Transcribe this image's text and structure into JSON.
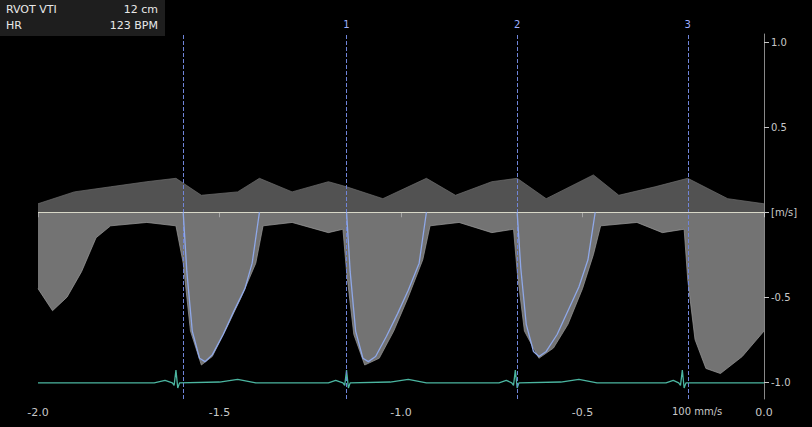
{
  "chart_data": {
    "type": "line",
    "annotations": {
      "info": [
        [
          "RVOT VTI",
          "12 cm"
        ],
        [
          "HR",
          "123 BPM"
        ]
      ],
      "sweep": "100 mm/s"
    },
    "xlim": [
      -2.0,
      0.0
    ],
    "xticks": [
      {
        "value": -2.0,
        "label": "-2.0"
      },
      -1.5,
      {
        "value": -1.0,
        "label": "-1.0"
      },
      -0.5,
      {
        "value": 0.0,
        "label": "0.0"
      }
    ],
    "ylim": [
      -1.1,
      1.05
    ],
    "yticks": [
      {
        "value": -1.0,
        "label": "-1.0"
      },
      -0.5,
      {
        "value": 0,
        "label": "[m/s]"
      },
      0.5,
      {
        "value": 1.0,
        "label": "1.0"
      }
    ],
    "baseline": 0,
    "grid": false,
    "markers": [
      {
        "x": -1.6,
        "label": null
      },
      {
        "x": -1.15,
        "label": "1"
      },
      {
        "x": -0.68,
        "label": "2"
      },
      {
        "x": -0.21,
        "label": "3"
      }
    ],
    "series": [
      {
        "type": "area",
        "color": "#9a9a9a",
        "x": [
          -2.0,
          -1.96,
          -1.92,
          -1.88,
          -1.84,
          -1.8,
          -1.7,
          -1.62,
          -1.6,
          -1.58,
          -1.55,
          -1.52,
          -1.48,
          -1.44,
          -1.4,
          -1.38,
          -1.3,
          -1.2,
          -1.16,
          -1.15,
          -1.13,
          -1.1,
          -1.06,
          -1.02,
          -0.98,
          -0.94,
          -0.92,
          -0.84,
          -0.75,
          -0.69,
          -0.68,
          -0.66,
          -0.62,
          -0.58,
          -0.54,
          -0.5,
          -0.47,
          -0.45,
          -0.35,
          -0.28,
          -0.22,
          -0.21,
          -0.19,
          -0.16,
          -0.12,
          -0.06,
          0.0
        ],
        "values": [
          -0.45,
          -0.58,
          -0.5,
          -0.35,
          -0.15,
          -0.08,
          -0.06,
          -0.08,
          -0.3,
          -0.7,
          -0.9,
          -0.85,
          -0.68,
          -0.5,
          -0.3,
          -0.08,
          -0.06,
          -0.12,
          -0.1,
          -0.35,
          -0.72,
          -0.9,
          -0.86,
          -0.7,
          -0.5,
          -0.28,
          -0.08,
          -0.06,
          -0.12,
          -0.1,
          -0.35,
          -0.7,
          -0.86,
          -0.8,
          -0.66,
          -0.45,
          -0.25,
          -0.08,
          -0.06,
          -0.12,
          -0.1,
          -0.4,
          -0.75,
          -0.92,
          -0.95,
          -0.85,
          -0.7
        ]
      },
      {
        "type": "area",
        "color": "#6e6e6e",
        "x": [
          -2.0,
          -1.9,
          -1.8,
          -1.7,
          -1.62,
          -1.55,
          -1.45,
          -1.39,
          -1.3,
          -1.2,
          -1.15,
          -1.05,
          -0.93,
          -0.85,
          -0.75,
          -0.68,
          -0.6,
          -0.47,
          -0.4,
          -0.3,
          -0.21,
          -0.1,
          0.0
        ],
        "values": [
          0.05,
          0.12,
          0.15,
          0.18,
          0.2,
          0.1,
          0.12,
          0.2,
          0.12,
          0.18,
          0.15,
          0.08,
          0.2,
          0.1,
          0.18,
          0.2,
          0.08,
          0.22,
          0.1,
          0.15,
          0.2,
          0.08,
          0.05
        ]
      },
      {
        "type": "line",
        "color": "#4bb5a0",
        "x": [
          -2.0,
          -1.68,
          -1.65,
          -1.63,
          -1.625,
          -1.62,
          -1.615,
          -1.61,
          -1.5,
          -1.45,
          -1.4,
          -1.2,
          -1.18,
          -1.16,
          -1.155,
          -1.15,
          -1.145,
          -1.14,
          -1.03,
          -0.98,
          -0.93,
          -0.73,
          -0.71,
          -0.695,
          -0.69,
          -0.685,
          -0.68,
          -0.675,
          -0.56,
          -0.51,
          -0.46,
          -0.27,
          -0.25,
          -0.235,
          -0.23,
          -0.225,
          -0.22,
          -0.215,
          0.0
        ],
        "values": [
          -1.005,
          -1.005,
          -0.99,
          -1.005,
          -1.02,
          -0.93,
          -1.035,
          -1.005,
          -1.0,
          -0.985,
          -1.005,
          -1.005,
          -0.99,
          -1.005,
          -1.02,
          -0.93,
          -1.035,
          -1.005,
          -1.0,
          -0.985,
          -1.005,
          -1.005,
          -0.99,
          -1.005,
          -1.02,
          -0.93,
          -1.035,
          -1.005,
          -1.0,
          -0.985,
          -1.005,
          -1.005,
          -0.99,
          -1.005,
          -1.02,
          -0.93,
          -1.035,
          -1.005,
          -1.005
        ]
      },
      {
        "type": "line",
        "color": "#8fa8e8",
        "x": [
          -1.6,
          -1.59,
          -1.575,
          -1.555,
          -1.54,
          -1.52,
          -1.49,
          -1.46,
          -1.43,
          -1.41,
          -1.39,
          -1.3,
          -1.15,
          -1.14,
          -1.125,
          -1.105,
          -1.09,
          -1.07,
          -1.04,
          -1.01,
          -0.98,
          -0.95,
          -0.93,
          -0.8,
          -0.68,
          -0.67,
          -0.655,
          -0.635,
          -0.62,
          -0.6,
          -0.57,
          -0.54,
          -0.51,
          -0.485,
          -0.465
        ],
        "values": [
          0,
          -0.35,
          -0.7,
          -0.86,
          -0.88,
          -0.84,
          -0.72,
          -0.58,
          -0.45,
          -0.3,
          0,
          null,
          0,
          -0.35,
          -0.7,
          -0.86,
          -0.88,
          -0.85,
          -0.73,
          -0.6,
          -0.46,
          -0.3,
          0,
          null,
          0,
          -0.33,
          -0.66,
          -0.82,
          -0.85,
          -0.82,
          -0.72,
          -0.58,
          -0.44,
          -0.28,
          0
        ]
      }
    ]
  }
}
